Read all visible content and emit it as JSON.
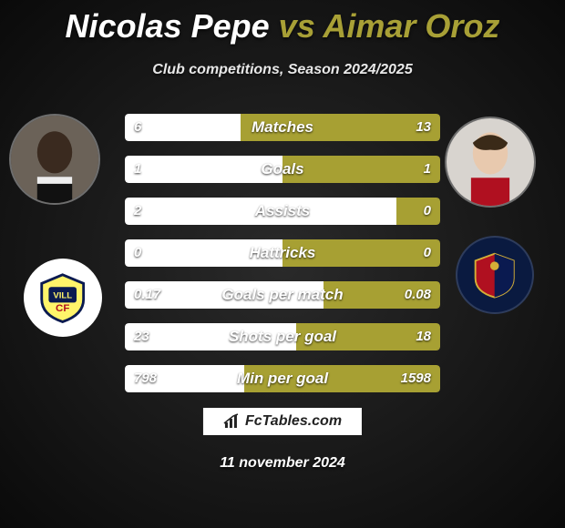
{
  "title": {
    "player1": "Nicolas Pepe",
    "vs": "vs",
    "player2": "Aimar Oroz"
  },
  "subtitle": "Club competitions, Season 2024/2025",
  "colors": {
    "p1_bar": "#ffffff",
    "p2_bar": "#a7a033",
    "winner_highlight": "#a7a033"
  },
  "stats": [
    {
      "label": "Matches",
      "p1": "6",
      "p2": "13",
      "p1_num": 6,
      "p2_num": 13
    },
    {
      "label": "Goals",
      "p1": "1",
      "p2": "1",
      "p1_num": 1,
      "p2_num": 1
    },
    {
      "label": "Assists",
      "p1": "2",
      "p2": "0",
      "p1_num": 2,
      "p2_num": 0
    },
    {
      "label": "Hattricks",
      "p1": "0",
      "p2": "0",
      "p1_num": 0,
      "p2_num": 0
    },
    {
      "label": "Goals per match",
      "p1": "0.17",
      "p2": "0.08",
      "p1_num": 0.17,
      "p2_num": 0.08
    },
    {
      "label": "Shots per goal",
      "p1": "23",
      "p2": "18",
      "p1_num": 23,
      "p2_num": 18
    },
    {
      "label": "Min per goal",
      "p1": "798",
      "p2": "1598",
      "p1_num": 798,
      "p2_num": 1598
    }
  ],
  "footer": {
    "site": "FcTables.com",
    "date": "11 november 2024"
  },
  "bar_min_pct": 14
}
